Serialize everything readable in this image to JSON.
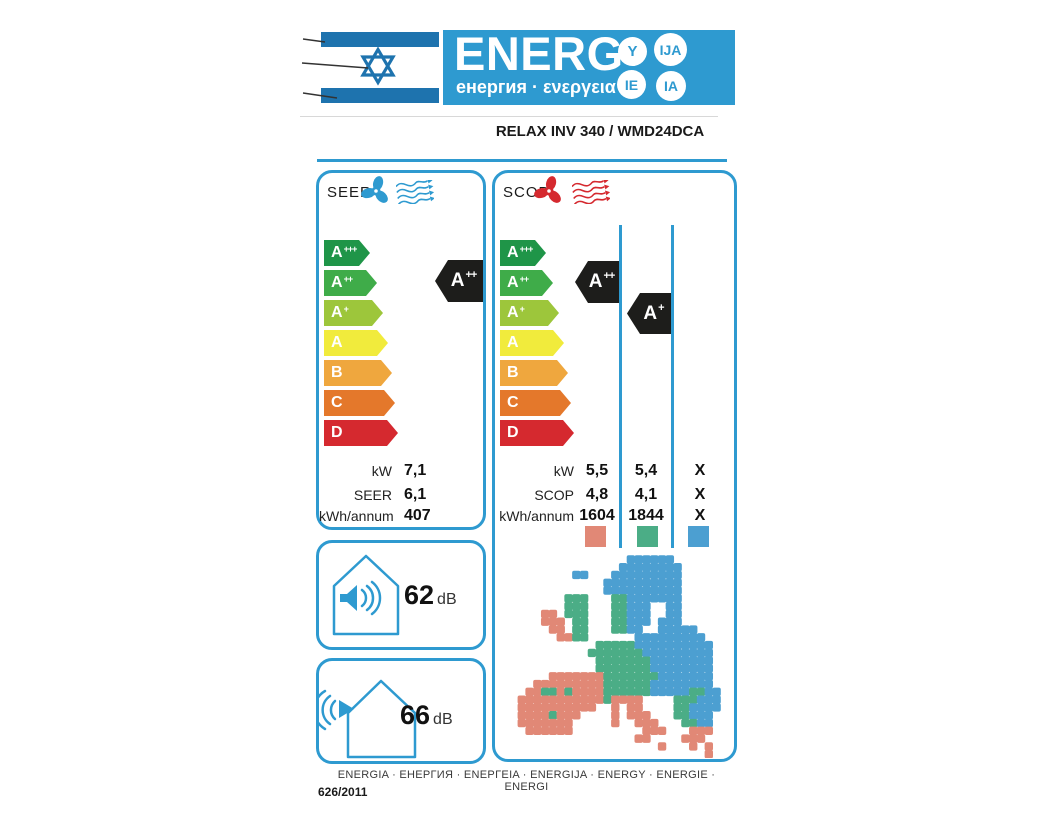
{
  "colors": {
    "label_blue": "#2E9AD0",
    "flag_blue": "#1E73AE",
    "class_appp": "#1F9548",
    "class_app": "#3FAC49",
    "class_ap": "#9DC63B",
    "class_a": "#F1EB3C",
    "class_b": "#EFA73E",
    "class_c": "#E4782B",
    "class_d": "#D5292F",
    "rating_black": "#1D1D1B",
    "zone_warmer": "#E18876",
    "zone_average": "#4BAD86",
    "zone_colder": "#4C9FD1"
  },
  "header": {
    "logo_title": "ENERG",
    "logo_subtitle": "енергия · ενεργεια",
    "circles": {
      "c1": "Y",
      "c2": "IJA",
      "c3": "IE",
      "c4": "IA"
    },
    "model": "RELAX INV 340 / WMD24DCA"
  },
  "scale_rows": [
    {
      "base": "A",
      "sup": "+++"
    },
    {
      "base": "A",
      "sup": "++"
    },
    {
      "base": "A",
      "sup": "+"
    },
    {
      "base": "A",
      "sup": ""
    },
    {
      "base": "B",
      "sup": ""
    },
    {
      "base": "C",
      "sup": ""
    },
    {
      "base": "D",
      "sup": ""
    }
  ],
  "seer": {
    "title": "SEER",
    "rating": {
      "base": "A",
      "sup": "++"
    },
    "values": [
      {
        "label": "kW",
        "value": "7,1"
      },
      {
        "label": "SEER",
        "value": "6,1"
      },
      {
        "label": "kWh/annum",
        "value": "407"
      }
    ]
  },
  "scop": {
    "title": "SCOP",
    "rating_col1": {
      "base": "A",
      "sup": "++"
    },
    "rating_col2": {
      "base": "A",
      "sup": "+"
    },
    "values": [
      {
        "label": "kW",
        "col1": "5,5",
        "col2": "5,4",
        "col3": "X"
      },
      {
        "label": "SCOP",
        "col1": "4,8",
        "col2": "4,1",
        "col3": "X"
      },
      {
        "label": "kWh/annum",
        "col1": "1604",
        "col2": "1844",
        "col3": "X"
      }
    ]
  },
  "noise": {
    "indoor": {
      "value": "62",
      "unit": "dB"
    },
    "outdoor": {
      "value": "66",
      "unit": "dB"
    }
  },
  "footer": {
    "energy_words": "ENERGIA · ЕНЕРГИЯ · ΕΝΕΡΓΕΙΑ · ENERGIJA · ENERGY · ENERGIE · ENERGI",
    "regulation": "626/2011"
  }
}
